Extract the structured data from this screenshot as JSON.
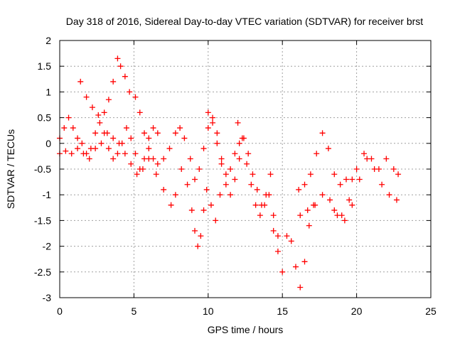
{
  "chart_data": {
    "type": "scatter",
    "title": "Day 318 of 2016, Sidereal Day-to-day VTEC variation (SDTVAR) for receiver brst",
    "xlabel": "GPS time / hours",
    "ylabel": "SDTVAR / TECUs",
    "xlim": [
      0,
      25
    ],
    "ylim": [
      -3,
      2
    ],
    "xticks": [
      0,
      5,
      10,
      15,
      20,
      25
    ],
    "yticks": [
      -3,
      -2.5,
      -2,
      -1.5,
      -1,
      -0.5,
      0,
      0.5,
      1,
      1.5,
      2
    ],
    "grid": true,
    "marker": "+",
    "series_color": "#ff0000",
    "series": [
      {
        "x": [
          0.0,
          0.3,
          0.6,
          0.9,
          1.2,
          1.5,
          1.8,
          2.1,
          2.4,
          2.7,
          3.0,
          3.3,
          3.6,
          3.9,
          4.2,
          4.5,
          4.8,
          5.1,
          5.4,
          5.7,
          6.0,
          6.3,
          6.6
        ],
        "y": [
          0.1,
          0.3,
          0.5,
          0.3,
          0.1,
          0.0,
          -0.2,
          -0.1,
          0.2,
          0.4,
          0.2,
          -0.1,
          -0.3,
          -0.2,
          0.0,
          0.3,
          0.1,
          -0.2,
          -0.5,
          -0.3,
          0.1,
          0.3,
          0.2
        ]
      },
      {
        "x": [
          0.0,
          0.4,
          0.8,
          1.2,
          1.6,
          2.0,
          2.4,
          2.8,
          3.2,
          3.6,
          4.0,
          4.4,
          4.8,
          5.2,
          5.6,
          6.0
        ],
        "y": [
          -0.2,
          -0.15,
          -0.2,
          -0.1,
          -0.2,
          -0.3,
          -0.1,
          0.0,
          0.2,
          0.1,
          0.0,
          -0.2,
          -0.4,
          -0.6,
          -0.5,
          -0.3
        ]
      },
      {
        "x": [
          1.4,
          1.8,
          2.2,
          2.6,
          3.0,
          3.3,
          3.6,
          3.9,
          4.1,
          4.4,
          4.7
        ],
        "y": [
          1.2,
          0.9,
          0.7,
          0.55,
          0.6,
          0.85,
          1.2,
          1.65,
          1.5,
          1.3,
          1.0
        ]
      },
      {
        "x": [
          5.1,
          5.4,
          5.7,
          6.0,
          6.3,
          6.6,
          7.0,
          7.4,
          7.8,
          8.1,
          8.4,
          8.8,
          9.1,
          9.4,
          9.7,
          10.0,
          10.3,
          10.6,
          10.9,
          11.2,
          11.5,
          11.8,
          12.1
        ],
        "y": [
          0.9,
          0.6,
          0.2,
          -0.1,
          -0.3,
          -0.4,
          -0.3,
          -0.1,
          0.2,
          0.3,
          0.1,
          -0.3,
          -0.7,
          -0.5,
          -0.1,
          0.3,
          0.5,
          0.2,
          -0.3,
          -0.6,
          -0.5,
          -0.2,
          0.0
        ]
      },
      {
        "x": [
          6.5,
          7.0,
          7.5,
          7.8,
          8.2,
          8.6,
          8.9,
          9.1,
          9.3,
          9.5,
          9.7,
          9.9,
          10.2,
          10.5,
          10.8
        ],
        "y": [
          -0.6,
          -0.9,
          -1.2,
          -1.0,
          -0.5,
          -0.8,
          -1.3,
          -1.7,
          -2.0,
          -1.8,
          -1.3,
          -0.9,
          -1.2,
          -1.5,
          -1.0
        ]
      },
      {
        "x": [
          10.0,
          10.3,
          10.6,
          10.9,
          11.2,
          11.5,
          11.8,
          12.1,
          12.4,
          12.7,
          13.0,
          13.3,
          13.6,
          13.9,
          14.2
        ],
        "y": [
          0.6,
          0.4,
          0.0,
          -0.4,
          -0.8,
          -1.0,
          -0.7,
          -0.3,
          0.1,
          -0.2,
          -0.6,
          -0.9,
          -1.2,
          -1.0,
          -0.6
        ]
      },
      {
        "x": [
          12.0,
          12.3,
          12.6,
          12.9,
          13.2,
          13.5,
          13.8,
          14.1,
          14.4,
          14.7
        ],
        "y": [
          0.4,
          0.1,
          -0.4,
          -0.8,
          -1.2,
          -1.4,
          -1.2,
          -1.0,
          -1.4,
          -1.8
        ]
      },
      {
        "x": [
          14.4,
          14.7,
          15.0,
          15.3,
          15.6,
          15.9,
          16.2,
          16.5,
          16.8,
          17.1
        ],
        "y": [
          -1.7,
          -2.1,
          -2.5,
          -1.8,
          -1.9,
          -2.4,
          -2.8,
          -2.3,
          -1.6,
          -1.2
        ]
      },
      {
        "x": [
          16.1,
          16.5,
          16.9,
          17.3,
          17.7,
          18.1,
          18.5,
          18.9,
          19.3,
          19.7
        ],
        "y": [
          -0.9,
          -0.8,
          -0.6,
          -0.2,
          0.2,
          -0.1,
          -0.6,
          -0.8,
          -0.7,
          -0.7
        ]
      },
      {
        "x": [
          16.2,
          16.7,
          17.2,
          17.7,
          18.2,
          18.7,
          19.2,
          19.7,
          20.2,
          20.7,
          21.2,
          21.7,
          22.2,
          22.7
        ],
        "y": [
          -1.4,
          -1.3,
          -1.2,
          -1.0,
          -1.1,
          -1.4,
          -1.5,
          -1.2,
          -0.7,
          -0.3,
          -0.5,
          -0.8,
          -1.0,
          -1.1
        ]
      },
      {
        "x": [
          18.5,
          19.0,
          19.5,
          20.0,
          20.5,
          21.0,
          21.5,
          22.0,
          22.5,
          22.8
        ],
        "y": [
          -1.3,
          -1.4,
          -1.1,
          -0.5,
          -0.2,
          -0.3,
          -0.5,
          -0.3,
          -0.5,
          -0.6
        ]
      }
    ]
  }
}
